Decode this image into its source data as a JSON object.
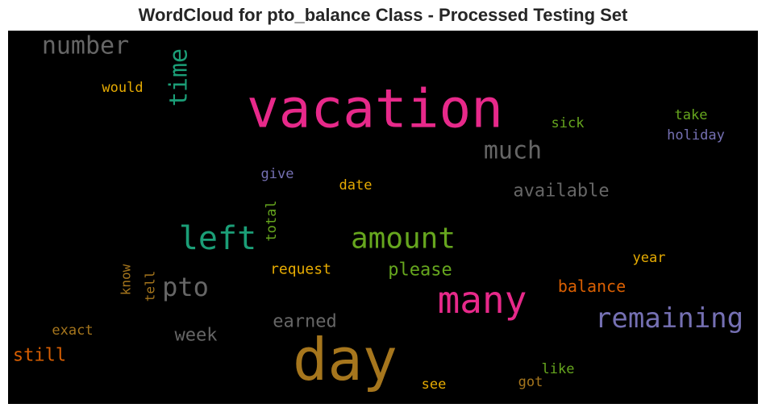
{
  "chart_data": {
    "type": "wordcloud",
    "title": "WordCloud for pto_balance Class - Processed Testing Set",
    "background": "#000000",
    "words": [
      {
        "text": "vacation",
        "color": "#e7298a",
        "orientation": "horizontal"
      },
      {
        "text": "day",
        "color": "#a6761d",
        "orientation": "horizontal"
      },
      {
        "text": "many",
        "color": "#e7298a",
        "orientation": "horizontal"
      },
      {
        "text": "left",
        "color": "#1b9e77",
        "orientation": "horizontal"
      },
      {
        "text": "amount",
        "color": "#66a61e",
        "orientation": "horizontal"
      },
      {
        "text": "remaining",
        "color": "#7570b3",
        "orientation": "horizontal"
      },
      {
        "text": "time",
        "color": "#1b9e77",
        "orientation": "vertical"
      },
      {
        "text": "number",
        "color": "#666666",
        "orientation": "horizontal"
      },
      {
        "text": "pto",
        "color": "#666666",
        "orientation": "horizontal"
      },
      {
        "text": "much",
        "color": "#666666",
        "orientation": "horizontal"
      },
      {
        "text": "available",
        "color": "#666666",
        "orientation": "horizontal"
      },
      {
        "text": "balance",
        "color": "#d95f02",
        "orientation": "horizontal"
      },
      {
        "text": "earned",
        "color": "#666666",
        "orientation": "horizontal"
      },
      {
        "text": "please",
        "color": "#66a61e",
        "orientation": "horizontal"
      },
      {
        "text": "week",
        "color": "#666666",
        "orientation": "horizontal"
      },
      {
        "text": "still",
        "color": "#d95f02",
        "orientation": "horizontal"
      },
      {
        "text": "request",
        "color": "#e6ab02",
        "orientation": "horizontal"
      },
      {
        "text": "holiday",
        "color": "#7570b3",
        "orientation": "horizontal"
      },
      {
        "text": "would",
        "color": "#e6ab02",
        "orientation": "horizontal"
      },
      {
        "text": "sick",
        "color": "#66a61e",
        "orientation": "horizontal"
      },
      {
        "text": "take",
        "color": "#66a61e",
        "orientation": "horizontal"
      },
      {
        "text": "give",
        "color": "#7570b3",
        "orientation": "horizontal"
      },
      {
        "text": "date",
        "color": "#e6ab02",
        "orientation": "horizontal"
      },
      {
        "text": "total",
        "color": "#66a61e",
        "orientation": "vertical"
      },
      {
        "text": "know",
        "color": "#a6761d",
        "orientation": "vertical"
      },
      {
        "text": "tell",
        "color": "#a6761d",
        "orientation": "vertical"
      },
      {
        "text": "year",
        "color": "#e6ab02",
        "orientation": "horizontal"
      },
      {
        "text": "exact",
        "color": "#a6761d",
        "orientation": "horizontal"
      },
      {
        "text": "like",
        "color": "#66a61e",
        "orientation": "horizontal"
      },
      {
        "text": "got",
        "color": "#a6761d",
        "orientation": "horizontal"
      },
      {
        "text": "see",
        "color": "#e6ab02",
        "orientation": "horizontal"
      }
    ]
  }
}
